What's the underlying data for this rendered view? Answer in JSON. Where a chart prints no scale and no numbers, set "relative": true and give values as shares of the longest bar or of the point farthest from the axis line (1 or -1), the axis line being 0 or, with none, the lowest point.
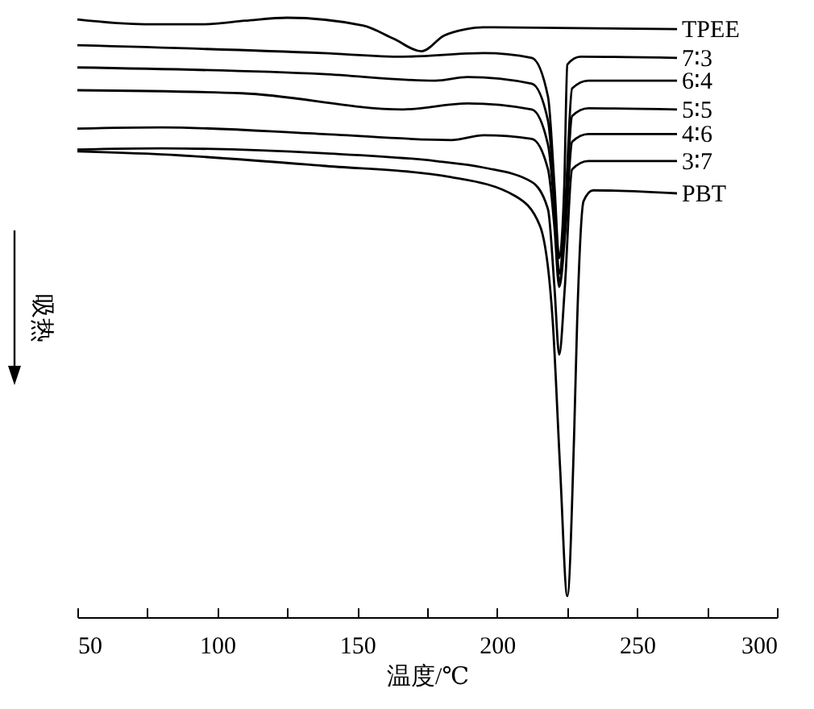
{
  "chart_data": {
    "type": "line",
    "xlabel": "温度/℃",
    "ylabel": "吸热",
    "relative": true,
    "xlim": [
      50,
      300
    ],
    "xticks": [
      50,
      {
        "value": 75,
        "label": null
      },
      100,
      {
        "value": 125,
        "label": null
      },
      150,
      {
        "value": 175,
        "label": null
      },
      200,
      {
        "value": 225,
        "label": null
      },
      250,
      {
        "value": 275,
        "label": null
      },
      300
    ],
    "series": [
      {
        "name": "TPEE",
        "color": "#000000",
        "x": [
          50,
          74,
          95,
          110,
          125,
          152,
          163,
          173,
          181,
          189,
          195,
          264.3
        ],
        "values": [
          0.997,
          0.989,
          0.989,
          0.995,
          1.0,
          0.987,
          0.965,
          0.944,
          0.97,
          0.981,
          0.984,
          0.981
        ]
      },
      {
        "name": "7∶3",
        "color": "#000000",
        "x": [
          50,
          137.6,
          166.4,
          195.2,
          212.4,
          218.2,
          220.5,
          222.2,
          224,
          225.1,
          229.8,
          264.3
        ],
        "values": [
          0.954,
          0.941,
          0.935,
          0.941,
          0.933,
          0.868,
          0.72,
          0.599,
          0.72,
          0.922,
          0.935,
          0.933
        ]
      },
      {
        "name": "6∶4",
        "color": "#000000",
        "x": [
          50,
          137.6,
          177.9,
          189.4,
          212.4,
          218.2,
          220.5,
          222.2,
          224.5,
          226.8,
          232.6,
          264.3
        ],
        "values": [
          0.917,
          0.906,
          0.895,
          0.901,
          0.89,
          0.828,
          0.7,
          0.573,
          0.7,
          0.882,
          0.895,
          0.895
        ]
      },
      {
        "name": "5∶5",
        "color": "#000000",
        "x": [
          50,
          108.8,
          166.4,
          189.4,
          212.4,
          218.2,
          220.5,
          222.2,
          224.5,
          226.8,
          232.6,
          264.3
        ],
        "values": [
          0.879,
          0.874,
          0.847,
          0.857,
          0.847,
          0.788,
          0.68,
          0.559,
          0.68,
          0.836,
          0.849,
          0.847
        ]
      },
      {
        "name": "4∶6",
        "color": "#000000",
        "x": [
          50,
          80,
          137.6,
          183.6,
          195.2,
          212.4,
          218.2,
          220.5,
          222.2,
          224.5,
          226.8,
          232.6,
          264.3
        ],
        "values": [
          0.815,
          0.817,
          0.806,
          0.796,
          0.804,
          0.798,
          0.747,
          0.65,
          0.551,
          0.65,
          0.793,
          0.806,
          0.806
        ]
      },
      {
        "name": "3∶7",
        "color": "#000000",
        "x": [
          50,
          80,
          137.6,
          177.9,
          195.2,
          212.4,
          218.2,
          220.5,
          222.2,
          224.2,
          226.8,
          232.6,
          264.3
        ],
        "values": [
          0.78,
          0.782,
          0.774,
          0.761,
          0.75,
          0.726,
          0.68,
          0.55,
          0.438,
          0.55,
          0.747,
          0.761,
          0.761
        ]
      },
      {
        "name": "PBT",
        "color": "#000000",
        "x": [
          50,
          80,
          137.6,
          183.6,
          206.7,
          215.3,
          219.9,
          222.5,
          225.1,
          227.5,
          228.6,
          230.9,
          234.3,
          264.3
        ],
        "values": [
          0.777,
          0.772,
          0.753,
          0.734,
          0.702,
          0.653,
          0.492,
          0.25,
          0.035,
          0.3,
          0.492,
          0.694,
          0.712,
          0.707
        ]
      }
    ]
  }
}
